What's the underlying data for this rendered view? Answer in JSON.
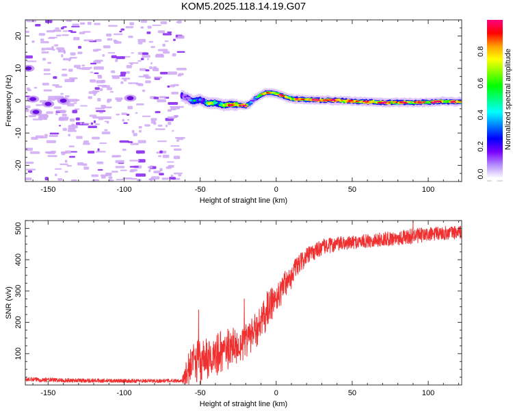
{
  "figure": {
    "title": "KOM5.2025.118.14.19.G07"
  },
  "chart_data": [
    {
      "type": "heatmap",
      "name": "spectrogram",
      "title": "KOM5.2025.118.14.19.G07",
      "xlabel": "Height of straight line (km)",
      "ylabel": "Frequency (Hz)",
      "xlim": [
        -165,
        122
      ],
      "ylim": [
        -25,
        25
      ],
      "xticks": [
        -150,
        -100,
        -50,
        0,
        50,
        100
      ],
      "xtick_labels": [
        "-150",
        "-100",
        "-50",
        "0",
        "50",
        "100"
      ],
      "yticks": [
        -20,
        -10,
        0,
        10,
        20
      ],
      "ytick_labels": [
        "-20",
        "-10",
        "0",
        "10",
        "20"
      ],
      "noise_region_x": [
        -165,
        -62
      ],
      "signal_region_x": [
        -62,
        122
      ],
      "signal_track": {
        "x": [
          -62,
          -58,
          -55,
          -50,
          -45,
          -40,
          -35,
          -30,
          -25,
          -20,
          -17,
          -14,
          -10,
          -5,
          0,
          5,
          10,
          20,
          30,
          40,
          50,
          60,
          70,
          80,
          90,
          100,
          110,
          122
        ],
        "freq": [
          1.5,
          0.8,
          -0.2,
          0.3,
          -0.8,
          -0.6,
          -1.4,
          -1.2,
          -1.3,
          -1.5,
          -0.8,
          0.5,
          1.8,
          2.6,
          2.2,
          1.4,
          0.6,
          0.3,
          0.2,
          0.1,
          -0.2,
          -0.3,
          -0.6,
          -0.5,
          -0.6,
          -0.5,
          -0.2,
          -0.4
        ],
        "amplitude": [
          0.15,
          0.2,
          0.25,
          0.4,
          0.55,
          0.45,
          0.7,
          0.8,
          0.9,
          0.95,
          0.3,
          0.35,
          0.6,
          0.85,
          0.75,
          0.8,
          0.75,
          0.9,
          0.95,
          0.95,
          0.9,
          0.85,
          0.9,
          0.8,
          0.85,
          0.9,
          0.85,
          0.8
        ]
      }
    },
    {
      "type": "colorbar",
      "name": "amplitude-colorbar",
      "label": "Normalized spectral amplitude",
      "range": [
        0.0,
        1.0
      ],
      "ticks": [
        0.0,
        0.2,
        0.4,
        0.6,
        0.8
      ],
      "tick_labels": [
        "0.0",
        "0.2",
        "0.4",
        "0.6",
        "0.8"
      ],
      "colormap": [
        "#ffffff",
        "#b48cff",
        "#7a00ff",
        "#0000ff",
        "#0080ff",
        "#00ffff",
        "#00ff80",
        "#00ff00",
        "#80ff00",
        "#ffff00",
        "#ffa000",
        "#ff0000",
        "#ff0080"
      ]
    },
    {
      "type": "line",
      "name": "snr",
      "xlabel": "Height of straight line (km)",
      "ylabel": "SNR (v/v)",
      "xlim": [
        -165,
        122
      ],
      "ylim": [
        0,
        525
      ],
      "xticks": [
        -150,
        -100,
        -50,
        0,
        50,
        100
      ],
      "xtick_labels": [
        "-150",
        "-100",
        "-50",
        "0",
        "50",
        "100"
      ],
      "yticks": [
        100,
        200,
        300,
        400,
        500
      ],
      "ytick_labels": [
        "100",
        "200",
        "300",
        "400",
        "500"
      ],
      "color": "#f03030",
      "series": [
        {
          "name": "SNR envelope (mean)",
          "x": [
            -165,
            -140,
            -120,
            -100,
            -80,
            -62,
            -58,
            -55,
            -50,
            -45,
            -40,
            -35,
            -30,
            -25,
            -20,
            -15,
            -10,
            -5,
            0,
            5,
            10,
            15,
            20,
            25,
            30,
            40,
            50,
            60,
            70,
            80,
            90,
            100,
            110,
            122
          ],
          "y": [
            18,
            15,
            14,
            13,
            13,
            14,
            40,
            90,
            70,
            80,
            95,
            110,
            120,
            130,
            145,
            165,
            200,
            240,
            280,
            320,
            355,
            385,
            410,
            425,
            440,
            450,
            455,
            460,
            465,
            470,
            475,
            480,
            485,
            488
          ]
        },
        {
          "name": "SNR noise amplitude (half-range)",
          "x": [
            -165,
            -62,
            -58,
            -40,
            -20,
            0,
            20,
            50,
            90,
            122
          ],
          "y": [
            10,
            8,
            70,
            70,
            65,
            55,
            40,
            30,
            35,
            30
          ]
        }
      ],
      "notable_peaks": [
        {
          "x": -51,
          "y": 240
        },
        {
          "x": -21,
          "y": 275
        },
        {
          "x": -6,
          "y": 298
        },
        {
          "x": 90,
          "y": 525
        }
      ]
    }
  ]
}
